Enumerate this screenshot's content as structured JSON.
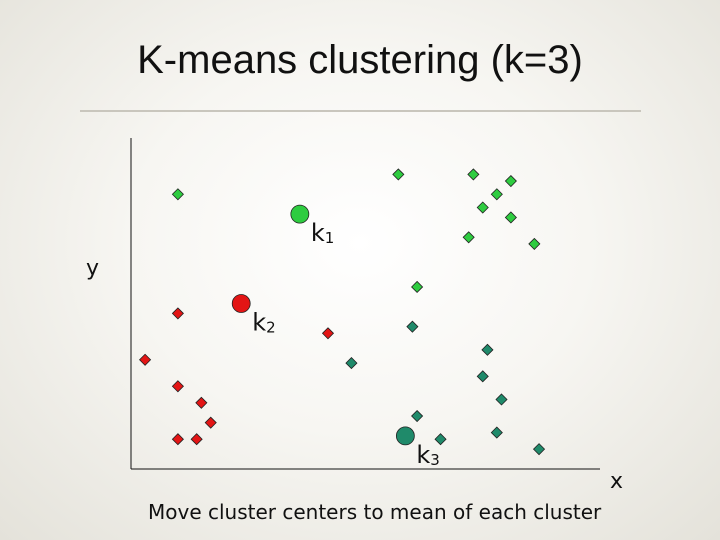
{
  "slide": {
    "title": "K-means clustering (k=3)",
    "caption": "Move cluster centers to mean of each cluster"
  },
  "chart_data": {
    "type": "scatter",
    "xlabel": "x",
    "ylabel": "y",
    "grid": false,
    "xlim": [
      0,
      100
    ],
    "ylim": [
      0,
      100
    ],
    "colors": {
      "cluster_1": "#2ecc40",
      "cluster_2": "#e31515",
      "cluster_3": "#1f8a6a"
    },
    "centers": [
      {
        "name": "k",
        "sub": "1",
        "cluster": "cluster_1",
        "x": 36,
        "y": 77
      },
      {
        "name": "k",
        "sub": "2",
        "cluster": "cluster_2",
        "x": 23.5,
        "y": 50
      },
      {
        "name": "k",
        "sub": "3",
        "cluster": "cluster_3",
        "x": 58.5,
        "y": 10
      }
    ],
    "series": [
      {
        "cluster": "cluster_1",
        "points": [
          {
            "x": 10,
            "y": 83
          },
          {
            "x": 57,
            "y": 89
          },
          {
            "x": 73,
            "y": 89
          },
          {
            "x": 81,
            "y": 87
          },
          {
            "x": 78,
            "y": 83
          },
          {
            "x": 75,
            "y": 79
          },
          {
            "x": 81,
            "y": 76
          },
          {
            "x": 72,
            "y": 70
          },
          {
            "x": 86,
            "y": 68
          },
          {
            "x": 61,
            "y": 55
          }
        ]
      },
      {
        "cluster": "cluster_2",
        "points": [
          {
            "x": 10,
            "y": 47
          },
          {
            "x": 42,
            "y": 41
          },
          {
            "x": 3,
            "y": 33
          },
          {
            "x": 10,
            "y": 25
          },
          {
            "x": 15,
            "y": 20
          },
          {
            "x": 17,
            "y": 14
          },
          {
            "x": 10,
            "y": 9
          },
          {
            "x": 14,
            "y": 9
          }
        ]
      },
      {
        "cluster": "cluster_3",
        "points": [
          {
            "x": 60,
            "y": 43
          },
          {
            "x": 47,
            "y": 32
          },
          {
            "x": 76,
            "y": 36
          },
          {
            "x": 75,
            "y": 28
          },
          {
            "x": 79,
            "y": 21
          },
          {
            "x": 61,
            "y": 16
          },
          {
            "x": 66,
            "y": 9
          },
          {
            "x": 78,
            "y": 11
          },
          {
            "x": 87,
            "y": 6
          }
        ]
      }
    ]
  }
}
